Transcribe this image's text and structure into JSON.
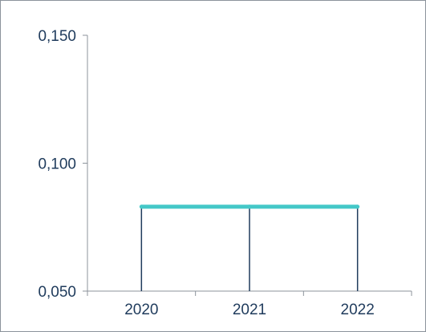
{
  "chart_data": {
    "type": "line",
    "title": "",
    "xlabel": "",
    "ylabel": "",
    "categories": [
      "2020",
      "2021",
      "2022"
    ],
    "series": [
      {
        "values": [
          0.083,
          0.083,
          0.083
        ]
      }
    ],
    "ylim": [
      0.05,
      0.15
    ],
    "yticks": [
      "0,050",
      "0,100",
      "0,150"
    ],
    "yticks_values": [
      0.05,
      0.1,
      0.15
    ],
    "drop_lines": true,
    "grid": false,
    "legend": "none",
    "colors": {
      "line": "#45c8c8",
      "drop_line": "#1f3b5c",
      "axis": "#8c939b",
      "tick_text": "#1f3b5c"
    }
  }
}
